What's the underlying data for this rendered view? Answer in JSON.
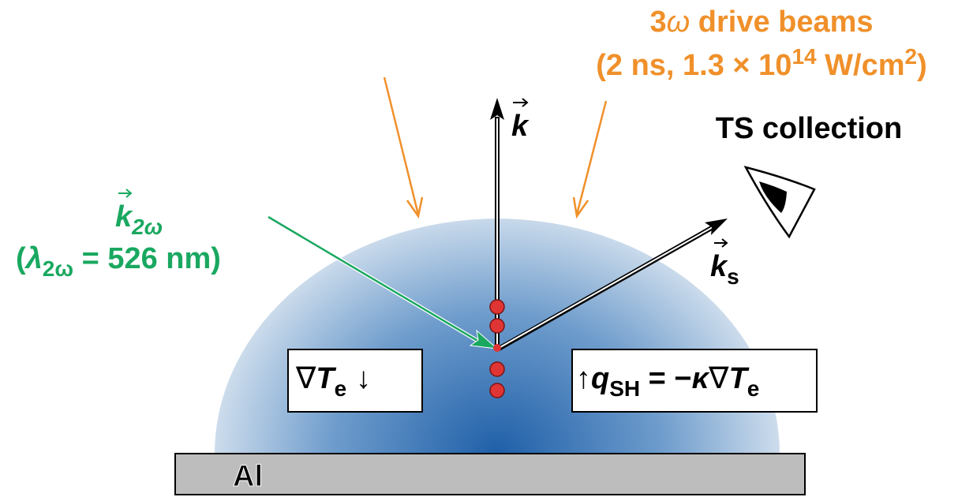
{
  "drive_beams": {
    "line1": [
      "3",
      "ω",
      " drive beams"
    ],
    "line2": [
      "(2 ns, 1.3 × 10",
      "14",
      " W/cm",
      "2",
      ")"
    ]
  },
  "k_label": "k",
  "ts_collection": "TS collection",
  "probe": {
    "k": "k",
    "k_sub": "2ω",
    "open": "(",
    "lambda": "λ",
    "lambda_sub": "2ω",
    "rest": " = 526 nm)"
  },
  "scatter": {
    "k": "k",
    "k_sub": "s"
  },
  "gradient_box": {
    "nabla": "∇",
    "t": "T",
    "t_sub": "e",
    "arrow": "↓"
  },
  "flux_box": {
    "arrow": "↑",
    "q": "q",
    "q_sub": "SH",
    "eq": " = −",
    "kappa": "κ",
    "nabla": "∇",
    "t": "T",
    "t_sub": "e"
  },
  "target": "Al"
}
